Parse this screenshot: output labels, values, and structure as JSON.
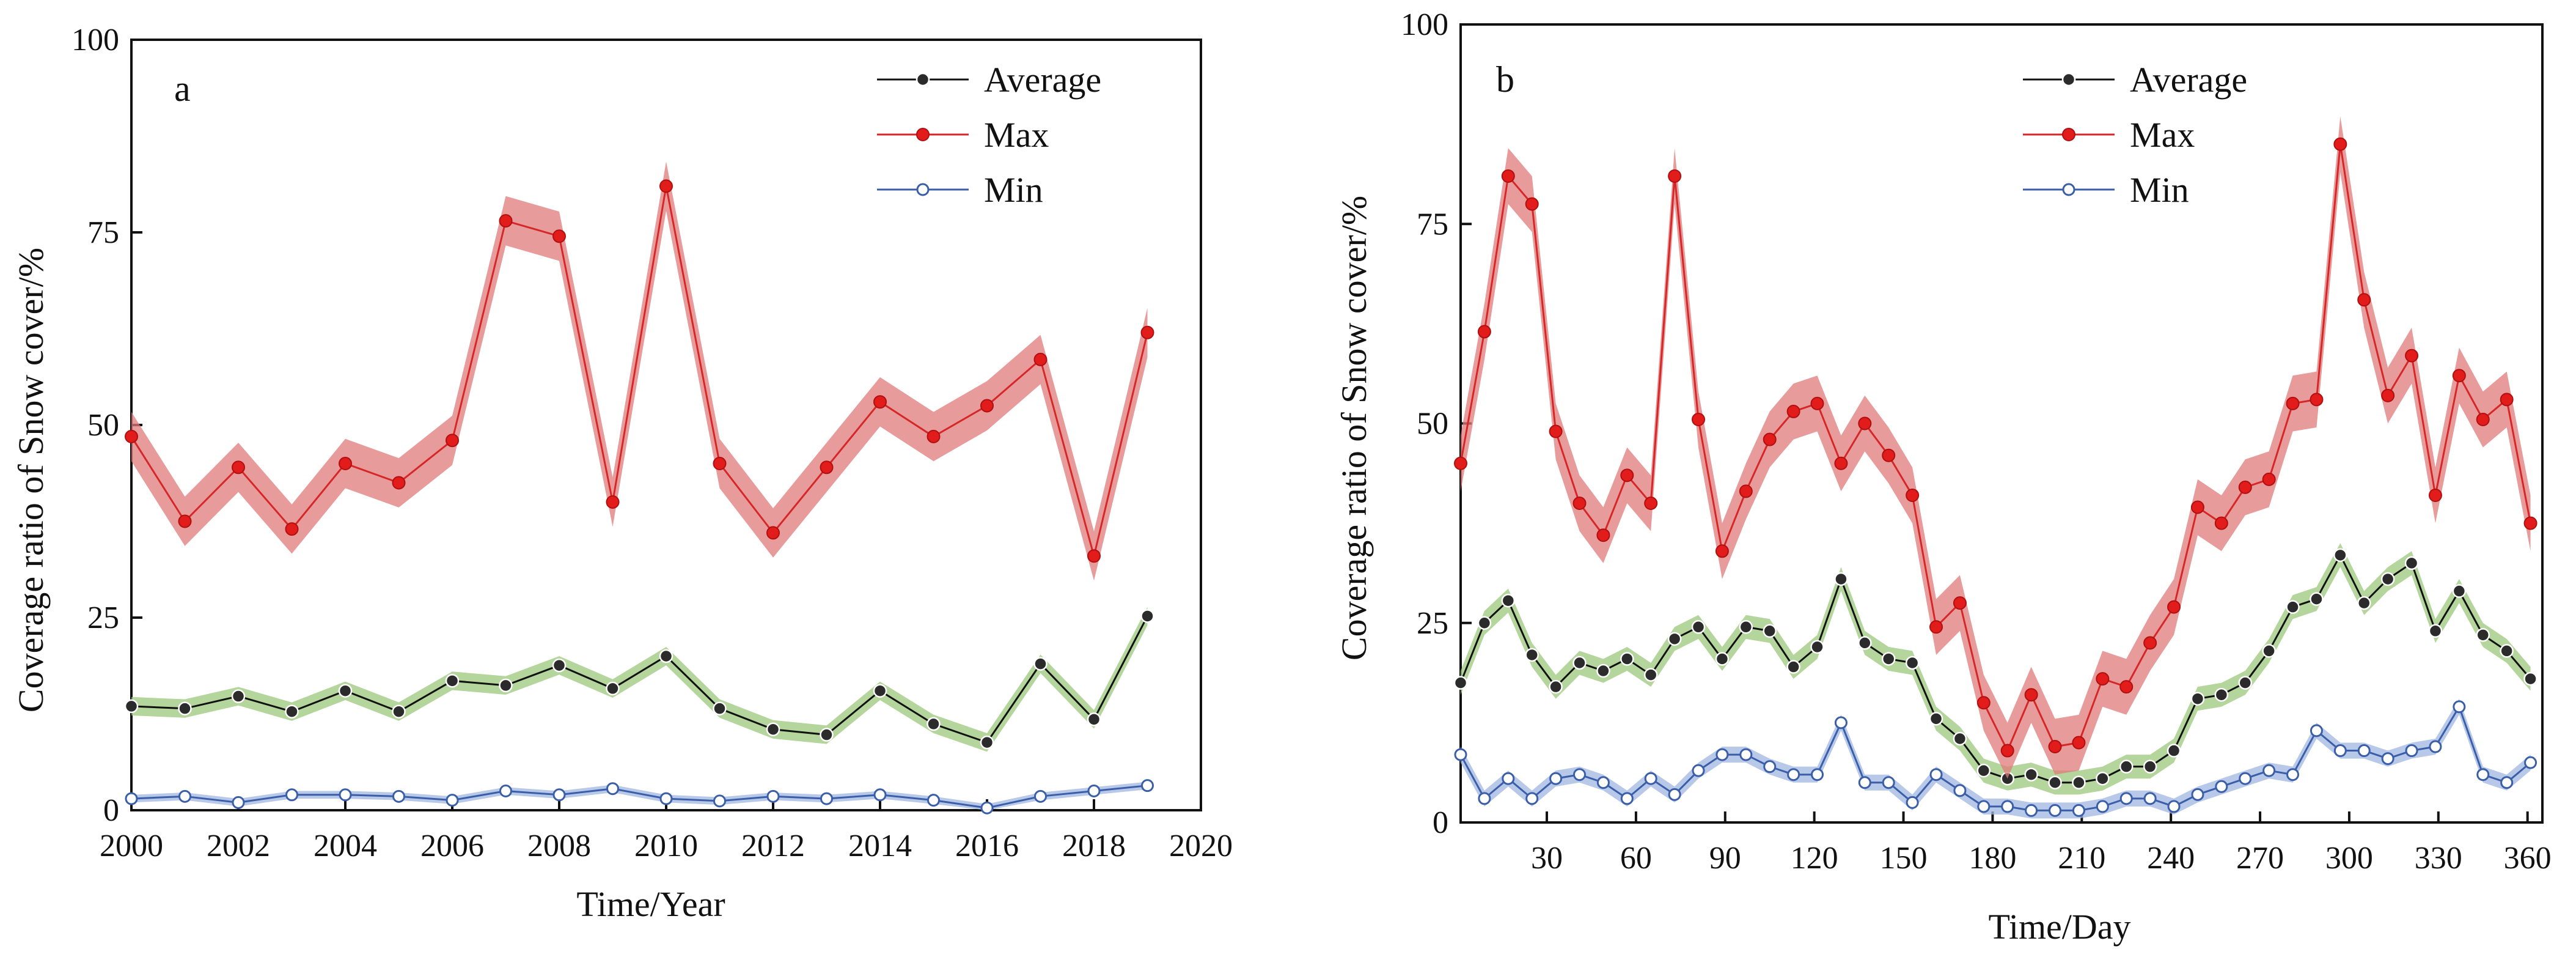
{
  "chart_data": [
    {
      "type": "line",
      "panel_label": "a",
      "xlabel": "Time/Year",
      "ylabel": "Coverage ratio of Snow cover/%",
      "xlim": [
        2000,
        2020
      ],
      "ylim": [
        0,
        100
      ],
      "x_ticks": [
        "2000",
        "2002",
        "2004",
        "2006",
        "2008",
        "2010",
        "2012",
        "2014",
        "2016",
        "2018",
        "2020"
      ],
      "y_ticks": [
        "0",
        "25",
        "50",
        "75",
        "100"
      ],
      "legend_position": "top-right",
      "x": [
        2000,
        2001,
        2002,
        2003,
        2004,
        2005,
        2006,
        2007,
        2008,
        2009,
        2010,
        2011,
        2012,
        2013,
        2014,
        2015,
        2016,
        2017,
        2018,
        2019
      ],
      "series": [
        {
          "name": "Average",
          "color": "#111111",
          "band_color": "#9bc77a",
          "band_width": 1.2,
          "marker": "filled-dark",
          "values": [
            13.5,
            13.2,
            14.8,
            12.8,
            15.5,
            12.8,
            16.8,
            16.2,
            18.8,
            15.8,
            20.0,
            13.2,
            10.5,
            9.8,
            15.5,
            11.2,
            8.8,
            19.0,
            11.8,
            25.2
          ]
        },
        {
          "name": "Max",
          "color": "#d62728",
          "band_color": "#e07a7a",
          "band_width": 3.2,
          "marker": "filled-red",
          "values": [
            48.5,
            37.5,
            44.5,
            36.5,
            45.0,
            42.5,
            48.0,
            76.5,
            74.5,
            40.0,
            81.0,
            45.0,
            36.0,
            44.5,
            53.0,
            48.5,
            52.5,
            58.5,
            33.0,
            62.0
          ]
        },
        {
          "name": "Min",
          "color": "#3a5ea8",
          "band_color": "#9fb6e0",
          "band_width": 0.5,
          "marker": "open",
          "values": [
            1.5,
            1.8,
            1.0,
            2.0,
            2.0,
            1.8,
            1.3,
            2.5,
            2.0,
            2.8,
            1.5,
            1.2,
            1.8,
            1.5,
            2.0,
            1.3,
            0.3,
            1.8,
            2.5,
            3.2
          ]
        }
      ]
    },
    {
      "type": "line",
      "panel_label": "b",
      "xlabel": "Time/Day",
      "ylabel": "Coverage ratio of Snow cover/%",
      "xlim": [
        1,
        365
      ],
      "ylim": [
        0,
        100
      ],
      "x_ticks": [
        "30",
        "60",
        "90",
        "120",
        "150",
        "180",
        "210",
        "240",
        "270",
        "300",
        "330",
        "360"
      ],
      "y_ticks": [
        "0",
        "25",
        "50",
        "75",
        "100"
      ],
      "legend_position": "top-right",
      "x": [
        1,
        9,
        17,
        25,
        33,
        41,
        49,
        57,
        65,
        73,
        81,
        89,
        97,
        105,
        113,
        121,
        129,
        137,
        145,
        153,
        161,
        169,
        177,
        185,
        193,
        201,
        209,
        217,
        225,
        233,
        241,
        249,
        257,
        265,
        273,
        281,
        289,
        297,
        305,
        313,
        321,
        329,
        337,
        345,
        353,
        361
      ],
      "series": [
        {
          "name": "Average",
          "color": "#111111",
          "band_color": "#9bc77a",
          "band_width": 1.5,
          "marker": "filled-dark",
          "values": [
            17.5,
            25.0,
            27.8,
            21.0,
            17.0,
            20.0,
            19.0,
            20.5,
            18.5,
            23.0,
            24.5,
            20.5,
            24.5,
            24.0,
            19.5,
            22.0,
            30.5,
            22.5,
            20.5,
            20.0,
            13.0,
            10.5,
            6.5,
            5.5,
            6.0,
            5.0,
            5.0,
            5.5,
            7.0,
            7.0,
            9.0,
            15.5,
            16.0,
            17.5,
            21.5,
            27.0,
            28.0,
            33.5,
            27.5,
            30.5,
            32.5,
            24.0,
            29.0,
            23.5,
            21.5,
            18.0
          ]
        },
        {
          "name": "Max",
          "color": "#d62728",
          "band_color": "#e07a7a",
          "band_width": 3.5,
          "marker": "filled-red",
          "values": [
            45.0,
            61.5,
            81.0,
            77.5,
            49.0,
            40.0,
            36.0,
            43.5,
            40.0,
            81.0,
            50.5,
            34.0,
            41.5,
            48.0,
            51.5,
            52.5,
            45.0,
            50.0,
            46.0,
            41.0,
            24.5,
            27.5,
            15.0,
            9.0,
            16.0,
            9.5,
            10.0,
            18.0,
            17.0,
            22.5,
            27.0,
            39.5,
            37.5,
            42.0,
            43.0,
            52.5,
            53.0,
            85.0,
            65.5,
            53.5,
            58.5,
            41.0,
            56.0,
            50.5,
            53.0,
            37.5
          ]
        },
        {
          "name": "Min",
          "color": "#3a5ea8",
          "band_color": "#9fb6e0",
          "band_width": 1.0,
          "marker": "open",
          "values": [
            8.5,
            3.0,
            5.5,
            3.0,
            5.5,
            6.0,
            5.0,
            3.0,
            5.5,
            3.5,
            6.5,
            8.5,
            8.5,
            7.0,
            6.0,
            6.0,
            12.5,
            5.0,
            5.0,
            2.5,
            6.0,
            4.0,
            2.0,
            2.0,
            1.5,
            1.5,
            1.5,
            2.0,
            3.0,
            3.0,
            2.0,
            3.5,
            4.5,
            5.5,
            6.5,
            6.0,
            11.5,
            9.0,
            9.0,
            8.0,
            9.0,
            9.5,
            14.5,
            6.0,
            5.0,
            7.5
          ]
        }
      ]
    }
  ]
}
